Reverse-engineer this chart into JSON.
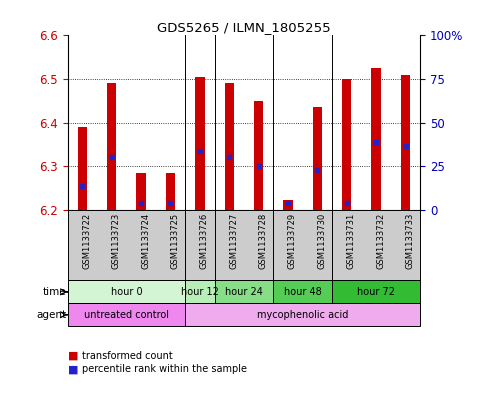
{
  "title": "GDS5265 / ILMN_1805255",
  "samples": [
    "GSM1133722",
    "GSM1133723",
    "GSM1133724",
    "GSM1133725",
    "GSM1133726",
    "GSM1133727",
    "GSM1133728",
    "GSM1133729",
    "GSM1133730",
    "GSM1133731",
    "GSM1133732",
    "GSM1133733"
  ],
  "bar_top": [
    6.39,
    6.49,
    6.285,
    6.285,
    6.505,
    6.49,
    6.45,
    6.222,
    6.435,
    6.5,
    6.525,
    6.51
  ],
  "bar_bottom": 6.2,
  "blue_dot_y": [
    6.255,
    6.32,
    6.215,
    6.215,
    6.335,
    6.32,
    6.3,
    6.215,
    6.29,
    6.215,
    6.355,
    6.345
  ],
  "ylim": [
    6.2,
    6.6
  ],
  "yticks_left": [
    6.2,
    6.3,
    6.4,
    6.5,
    6.6
  ],
  "yticks_right": [
    0,
    25,
    50,
    75,
    100
  ],
  "yticks_right_labels": [
    "0",
    "25",
    "50",
    "75",
    "100%"
  ],
  "bar_color": "#cc0000",
  "blue_color": "#2222cc",
  "time_groups": [
    {
      "label": "hour 0",
      "start": 0,
      "end": 4,
      "color": "#d4f5d4"
    },
    {
      "label": "hour 12",
      "start": 4,
      "end": 5,
      "color": "#b8eeb8"
    },
    {
      "label": "hour 24",
      "start": 5,
      "end": 7,
      "color": "#88dd88"
    },
    {
      "label": "hour 48",
      "start": 7,
      "end": 9,
      "color": "#55cc55"
    },
    {
      "label": "hour 72",
      "start": 9,
      "end": 12,
      "color": "#33bb33"
    }
  ],
  "agent_groups": [
    {
      "label": "untreated control",
      "start": 0,
      "end": 4,
      "color": "#ee88ee"
    },
    {
      "label": "mycophenolic acid",
      "start": 4,
      "end": 12,
      "color": "#f0aaee"
    }
  ],
  "sample_bg": "#cccccc",
  "bar_width": 0.32,
  "label_color_left": "#cc0000",
  "label_color_right": "#0000bb"
}
